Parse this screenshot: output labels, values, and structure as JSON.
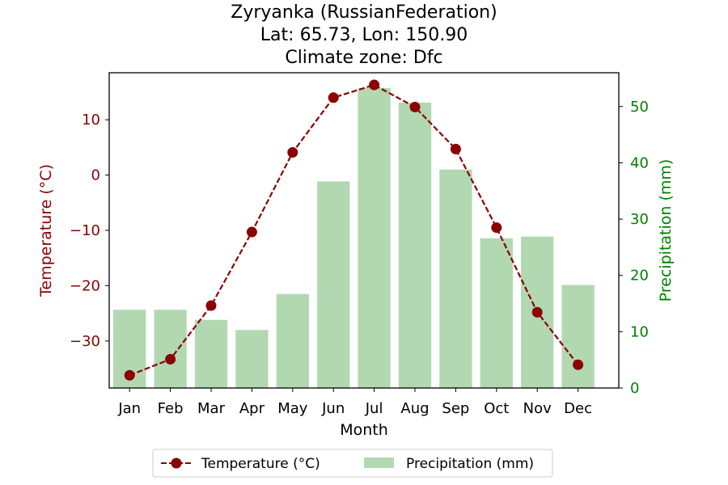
{
  "chart_data": {
    "type": "bar+line",
    "title_lines": [
      "Zyryanka (RussianFederation)",
      "Lat: 65.73, Lon: 150.90",
      "Climate zone: Dfc"
    ],
    "xlabel": "Month",
    "categories": [
      "Jan",
      "Feb",
      "Mar",
      "Apr",
      "May",
      "Jun",
      "Jul",
      "Aug",
      "Sep",
      "Oct",
      "Nov",
      "Dec"
    ],
    "temperature": {
      "name": "Temperature (°C)",
      "axis": "left",
      "ylabel": "Temperature (°C)",
      "ylim": [
        -38.5,
        18.5
      ],
      "ticks": [
        10,
        0,
        -10,
        -20,
        -30
      ],
      "tick_labels": [
        "10",
        "0",
        "−10",
        "−20",
        "−30"
      ],
      "values": [
        -36.2,
        -33.3,
        -23.6,
        -10.3,
        4.1,
        14.0,
        16.3,
        12.3,
        4.7,
        -9.5,
        -24.8,
        -34.3
      ],
      "color": "#8b0000",
      "style": "dashed line with circle markers"
    },
    "precipitation": {
      "name": "Precipitation (mm)",
      "axis": "right",
      "ylabel": "Precipitation (mm)",
      "ylim": [
        0,
        56
      ],
      "ticks": [
        0,
        10,
        20,
        30,
        40,
        50
      ],
      "tick_labels": [
        "0",
        "10",
        "20",
        "30",
        "40",
        "50"
      ],
      "values": [
        13.9,
        13.9,
        12.1,
        10.3,
        16.7,
        36.7,
        53.3,
        50.7,
        38.8,
        26.6,
        26.9,
        18.3
      ],
      "color": "#b2d8b2"
    },
    "legend": {
      "placement": "bottom-center",
      "entries": [
        "Temperature (°C)",
        "Precipitation (mm)"
      ]
    },
    "grid": false
  },
  "colors": {
    "temperature_axis": "#8b0000",
    "precipitation_axis": "#008000",
    "bar_fill": "#b2d8b2",
    "line": "#8b0000"
  }
}
